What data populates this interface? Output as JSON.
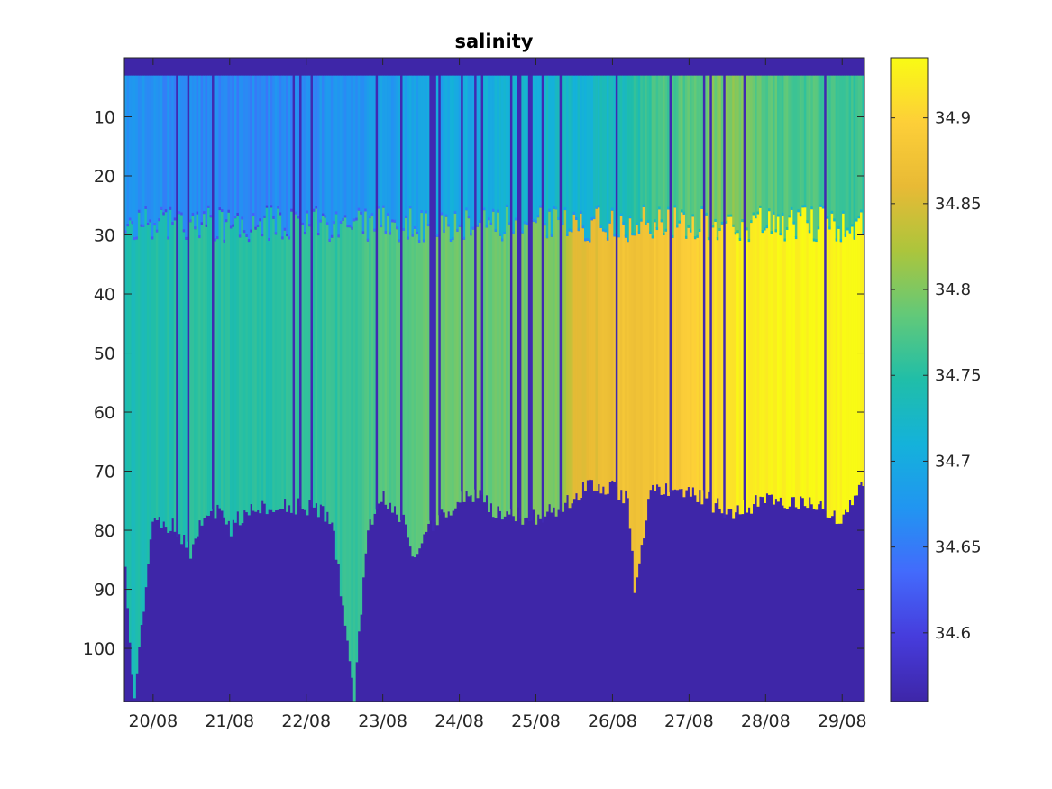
{
  "chart_data": {
    "type": "heatmap",
    "title": "salinity",
    "xlabel": "",
    "ylabel": "",
    "colormap": "parula",
    "x_tick_labels": [
      "20/08",
      "21/08",
      "22/08",
      "23/08",
      "24/08",
      "25/08",
      "26/08",
      "27/08",
      "28/08",
      "29/08"
    ],
    "xlim": [
      "2019-08-19T15:00",
      "2019-08-29T07:00"
    ],
    "y_ticks": [
      10,
      20,
      30,
      40,
      50,
      60,
      70,
      80,
      90,
      100
    ],
    "y_tick_labels": [
      "10",
      "20",
      "30",
      "40",
      "50",
      "60",
      "70",
      "80",
      "90",
      "100"
    ],
    "ylim": [
      0,
      109
    ],
    "y_reversed": true,
    "colorbar": {
      "ticks": [
        34.6,
        34.65,
        34.7,
        34.75,
        34.8,
        34.85,
        34.9
      ],
      "tick_labels": [
        "34.6",
        "34.65",
        "34.7",
        "34.75",
        "34.8",
        "34.85",
        "34.9"
      ],
      "clim": [
        34.56,
        34.935
      ]
    },
    "bottom_depth_profile": {
      "days": [
        "2019-08-19T15:00",
        "2019-08-19T18:00",
        "2019-08-20T00:00",
        "2019-08-20T08:00",
        "2019-08-20T12:00",
        "2019-08-20T15:00",
        "2019-08-20T20:00",
        "2019-08-21T00:00",
        "2019-08-21T06:00",
        "2019-08-21T12:00",
        "2019-08-22T00:00",
        "2019-08-22T08:00",
        "2019-08-22T12:00",
        "2019-08-22T15:00",
        "2019-08-22T19:00",
        "2019-08-23T00:00",
        "2019-08-23T06:00",
        "2019-08-23T10:00",
        "2019-08-23T14:00",
        "2019-08-24T00:00",
        "2019-08-24T06:00",
        "2019-08-24T12:00",
        "2019-08-25T00:00",
        "2019-08-25T08:00",
        "2019-08-25T18:00",
        "2019-08-26T00:00",
        "2019-08-26T05:00",
        "2019-08-26T07:00",
        "2019-08-26T12:00",
        "2019-08-27T00:00",
        "2019-08-27T12:00",
        "2019-08-28T00:00",
        "2019-08-28T12:00",
        "2019-08-29T00:00",
        "2019-08-29T07:00"
      ],
      "depth": [
        85,
        108,
        78,
        80,
        84,
        78,
        77,
        80,
        76,
        76,
        76,
        78,
        95,
        109,
        80,
        74,
        78,
        84,
        80,
        75,
        74,
        77,
        78,
        76,
        72,
        73,
        75,
        91,
        73,
        73,
        77,
        75,
        75,
        78,
        72
      ]
    },
    "mixed_layer_depth": 28,
    "surface_gap_depth": 3,
    "column_value_mean": {
      "days": [
        "2019-08-19T15:00",
        "2019-08-20T12:00",
        "2019-08-21T12:00",
        "2019-08-22T12:00",
        "2019-08-23T12:00",
        "2019-08-24T12:00",
        "2019-08-25T08:00",
        "2019-08-25T12:00",
        "2019-08-26T00:00",
        "2019-08-26T12:00",
        "2019-08-27T00:00",
        "2019-08-27T12:00",
        "2019-08-28T00:00",
        "2019-08-28T12:00",
        "2019-08-29T07:00"
      ],
      "upper_value": [
        34.67,
        34.66,
        34.66,
        34.67,
        34.69,
        34.71,
        34.72,
        34.72,
        34.73,
        34.76,
        34.78,
        34.8,
        34.78,
        34.77,
        34.76
      ],
      "lower_value": [
        34.74,
        34.75,
        34.75,
        34.76,
        34.79,
        34.79,
        34.8,
        34.85,
        34.87,
        34.88,
        34.89,
        34.92,
        34.93,
        34.93,
        34.93
      ]
    }
  }
}
